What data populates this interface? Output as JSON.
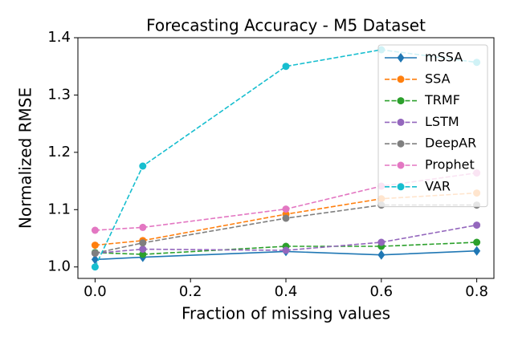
{
  "chart_data": {
    "type": "line",
    "title": "Forecasting Accuracy - M5 Dataset",
    "x_label": "Fraction of missing values",
    "y_label": "Normalized RMSE",
    "x": [
      0,
      0.1,
      0.4,
      0.6,
      0.8
    ],
    "series": [
      {
        "name": "mSSA",
        "color": "#1f77b4",
        "linestyle": "solid",
        "marker": "diamond",
        "values": [
          1.013,
          1.017,
          1.027,
          1.021,
          1.028
        ]
      },
      {
        "name": "SSA",
        "color": "#ff7f0e",
        "linestyle": "dashed",
        "marker": "circle",
        "values": [
          1.038,
          1.046,
          1.092,
          1.119,
          1.129
        ]
      },
      {
        "name": "TRMF",
        "color": "#2ca02c",
        "linestyle": "dashed",
        "marker": "circle",
        "values": [
          1.025,
          1.022,
          1.036,
          1.036,
          1.043
        ]
      },
      {
        "name": "LSTM",
        "color": "#9467bd",
        "linestyle": "dashed",
        "marker": "circle",
        "values": [
          1.024,
          1.031,
          1.029,
          1.043,
          1.073
        ]
      },
      {
        "name": "DeepAR",
        "color": "#7f7f7f",
        "linestyle": "dashed",
        "marker": "circle",
        "values": [
          1.024,
          1.042,
          1.085,
          1.108,
          1.108
        ]
      },
      {
        "name": "Prophet",
        "color": "#e377c2",
        "linestyle": "dashed",
        "marker": "circle",
        "values": [
          1.064,
          1.069,
          1.101,
          1.141,
          1.164
        ]
      },
      {
        "name": "VAR",
        "color": "#17becf",
        "linestyle": "dashed",
        "marker": "circle",
        "values": [
          1.0,
          1.176,
          1.35,
          1.379,
          1.357
        ]
      }
    ],
    "xlim": [
      -0.036,
      0.836
    ],
    "xticks": [
      {
        "value": 0,
        "label": "0.0"
      },
      0.2,
      0.4,
      0.6,
      0.8
    ],
    "ylim": [
      0.98,
      1.4
    ],
    "yticks": [
      {
        "value": 1,
        "label": "1.0"
      },
      1.1,
      1.2,
      1.3,
      1.4
    ],
    "legend": "upper right"
  }
}
